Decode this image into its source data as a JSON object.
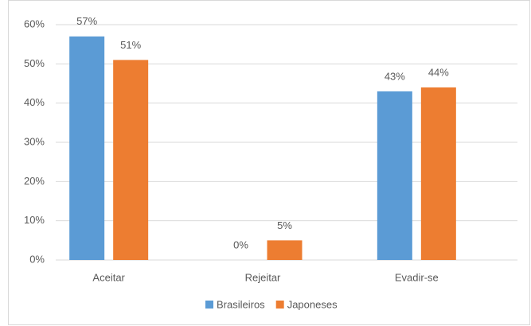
{
  "chart_data": {
    "type": "bar",
    "categories": [
      "Aceitar",
      "Rejeitar",
      "Evadir-se"
    ],
    "series": [
      {
        "name": "Brasileiros",
        "color": "#5b9bd5",
        "values": [
          57,
          0,
          43
        ],
        "value_labels": [
          "57%",
          "0%",
          "43%"
        ]
      },
      {
        "name": "Japoneses",
        "color": "#ed7d31",
        "values": [
          51,
          5,
          44
        ],
        "value_labels": [
          "51%",
          "5%",
          "44%"
        ]
      }
    ],
    "ylim": [
      0,
      60
    ],
    "yticks": [
      {
        "value": 0,
        "label": "0%"
      },
      {
        "value": 10,
        "label": "10%"
      },
      {
        "value": 20,
        "label": "20%"
      },
      {
        "value": 30,
        "label": "30%"
      },
      {
        "value": 40,
        "label": "40%"
      },
      {
        "value": 50,
        "label": "50%"
      },
      {
        "value": 60,
        "label": "60%"
      }
    ],
    "grid": true,
    "legend": "bottom"
  }
}
